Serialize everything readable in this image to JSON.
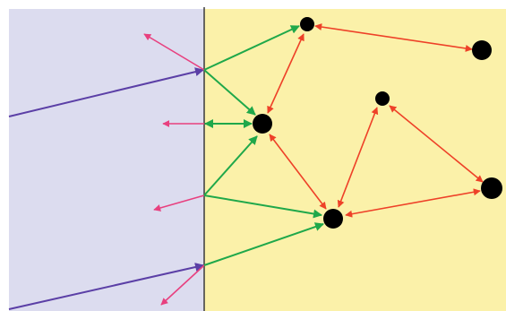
{
  "regions": [
    {
      "name": "left-medium",
      "color": "#dcdcef"
    },
    {
      "name": "right-medium",
      "color": "#fbf1a9"
    }
  ],
  "interface_color": "#3a3a3a",
  "arrow_colors": {
    "incident": "#5b3fa6",
    "reflected": "#e8407f",
    "transmitted": "#1fa84a",
    "scattered": "#ee4128"
  },
  "particles": [
    {
      "id": "p1",
      "size": "medium"
    },
    {
      "id": "p2",
      "size": "large"
    },
    {
      "id": "p3",
      "size": "large"
    },
    {
      "id": "p4",
      "size": "small"
    },
    {
      "id": "p5",
      "size": "large"
    },
    {
      "id": "p6",
      "size": "large"
    }
  ]
}
